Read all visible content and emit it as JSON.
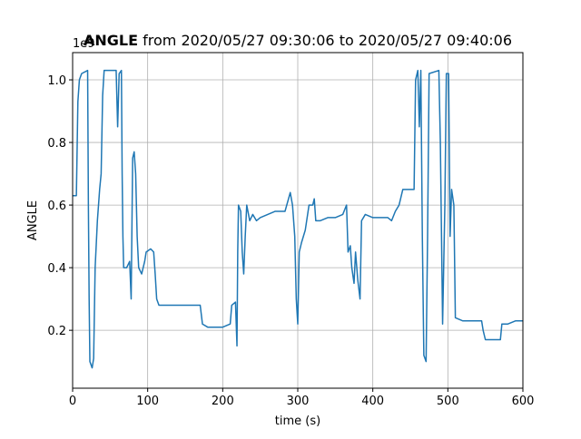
{
  "chart_data": {
    "type": "line",
    "title_bold": "ANGLE",
    "title": " from 2020/05/27 09:30:06 to 2020/05/27 09:40:06",
    "x_label": "time (s)",
    "y_label": "ANGLE",
    "y_offset_text": "1e9",
    "x": [
      0,
      5,
      7,
      9,
      12,
      20,
      21,
      22,
      23,
      26,
      28,
      30,
      33,
      36,
      38,
      40,
      42,
      50,
      58,
      60,
      62,
      65,
      66,
      67,
      68,
      72,
      76,
      78,
      80,
      82,
      84,
      86,
      88,
      92,
      96,
      98,
      104,
      108,
      110,
      112,
      115,
      130,
      150,
      170,
      173,
      180,
      190,
      200,
      210,
      212,
      217,
      219,
      220,
      221,
      224,
      226,
      228,
      230,
      232,
      236,
      240,
      245,
      250,
      260,
      270,
      283,
      290,
      293,
      296,
      298,
      300,
      302,
      305,
      310,
      315,
      320,
      322,
      324,
      330,
      340,
      350,
      360,
      365,
      367,
      370,
      372,
      375,
      377,
      380,
      383,
      385,
      390,
      400,
      410,
      420,
      425,
      430,
      435,
      440,
      455,
      457,
      460,
      462,
      464,
      466,
      468,
      471,
      473,
      475,
      488,
      490,
      493,
      496,
      498,
      501,
      503,
      505,
      508,
      510,
      520,
      535,
      545,
      547,
      550,
      560,
      570,
      572,
      580,
      590,
      600
    ],
    "series": [
      {
        "name": "ANGLE",
        "color": "#1f77b4",
        "values": [
          0.63,
          0.63,
          0.93,
          1.0,
          1.02,
          1.03,
          0.6,
          0.3,
          0.1,
          0.08,
          0.11,
          0.4,
          0.55,
          0.65,
          0.7,
          0.95,
          1.03,
          1.03,
          1.03,
          0.85,
          1.02,
          1.03,
          0.7,
          0.5,
          0.4,
          0.4,
          0.42,
          0.3,
          0.75,
          0.77,
          0.7,
          0.5,
          0.4,
          0.38,
          0.42,
          0.45,
          0.46,
          0.45,
          0.38,
          0.3,
          0.28,
          0.28,
          0.28,
          0.28,
          0.22,
          0.21,
          0.21,
          0.21,
          0.22,
          0.28,
          0.29,
          0.15,
          0.45,
          0.6,
          0.58,
          0.45,
          0.38,
          0.5,
          0.6,
          0.55,
          0.57,
          0.55,
          0.56,
          0.57,
          0.58,
          0.58,
          0.64,
          0.6,
          0.5,
          0.3,
          0.22,
          0.45,
          0.48,
          0.52,
          0.6,
          0.6,
          0.62,
          0.55,
          0.55,
          0.56,
          0.56,
          0.57,
          0.6,
          0.45,
          0.47,
          0.4,
          0.35,
          0.45,
          0.36,
          0.3,
          0.55,
          0.57,
          0.56,
          0.56,
          0.56,
          0.55,
          0.58,
          0.6,
          0.65,
          0.65,
          1.0,
          1.03,
          0.85,
          1.03,
          0.5,
          0.12,
          0.1,
          0.5,
          1.02,
          1.03,
          0.8,
          0.22,
          0.6,
          1.02,
          1.02,
          0.5,
          0.65,
          0.6,
          0.24,
          0.23,
          0.23,
          0.23,
          0.2,
          0.17,
          0.17,
          0.17,
          0.22,
          0.22,
          0.23,
          0.23
        ]
      }
    ],
    "xlim": [
      0,
      600
    ],
    "xticks": [
      0,
      100,
      200,
      300,
      400,
      500,
      600
    ],
    "ylim": [
      0.015,
      1.087
    ],
    "yticks": [
      0.2,
      0.4,
      0.6,
      0.8,
      {
        "value": 1,
        "label": "1.0"
      }
    ],
    "grid": true
  }
}
